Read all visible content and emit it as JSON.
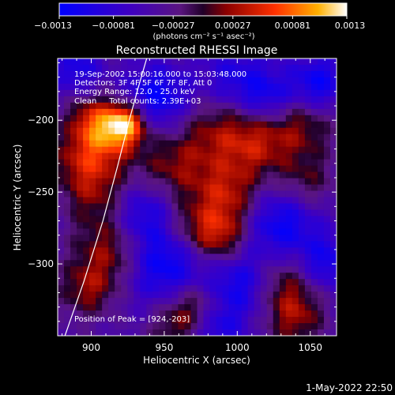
{
  "chart_data": {
    "type": "heatmap",
    "title": "Reconstructed RHESSI Image",
    "xlabel": "Heliocentric X (arcsec)",
    "ylabel": "Heliocentric Y (arcsec)",
    "xlim": [
      877,
      1068
    ],
    "ylim": [
      -350,
      -157
    ],
    "x_ticks": [
      900,
      950,
      1000,
      1050
    ],
    "x_tick_labels": [
      "900",
      "950",
      "1000",
      "1050"
    ],
    "y_ticks": [
      -200,
      -250,
      -300
    ],
    "y_tick_labels": [
      "−200",
      "−250",
      "−300"
    ],
    "colorbar": {
      "min": -0.0013,
      "max": 0.0013,
      "ticks": [
        -0.0013,
        -0.00081,
        -0.00027,
        0.00027,
        0.00081,
        0.0013
      ],
      "tick_labels": [
        "−0.0013",
        "−0.00081",
        "−0.00027",
        "0.00027",
        "0.00081",
        "0.0013"
      ],
      "unit_label": "(photons cm⁻² s⁻¹ asec⁻²)"
    },
    "annotations": [
      "19-Sep-2002 15:00:16.000 to 15:03:48.000",
      "Detectors: 3F 4F 5F 6F 7F 8F, Att 0",
      "Energy Range: 12.0 - 25.0 keV",
      "Clean     Total counts: 2.39E+03"
    ],
    "peak_label": "Position of Peak = [924,-203]",
    "peak": [
      924,
      -203
    ],
    "limb_points": [
      [
        882,
        -350
      ],
      [
        895,
        -312
      ],
      [
        908,
        -270
      ],
      [
        918,
        -232
      ],
      [
        926,
        -200
      ],
      [
        932,
        -178
      ],
      [
        938,
        -157
      ]
    ],
    "blobs": [
      [
        924,
        -202,
        0.00125,
        10
      ],
      [
        912,
        -210,
        0.00075,
        14
      ],
      [
        895,
        -228,
        0.0007,
        16
      ],
      [
        900,
        -198,
        0.0006,
        12
      ],
      [
        905,
        -252,
        0.0005,
        16
      ],
      [
        915,
        -290,
        0.00075,
        18
      ],
      [
        897,
        -318,
        0.0006,
        14
      ],
      [
        955,
        -233,
        0.0006,
        18
      ],
      [
        965,
        -275,
        0.0005,
        14
      ],
      [
        990,
        -205,
        0.0007,
        20
      ],
      [
        993,
        -252,
        0.00075,
        16
      ],
      [
        988,
        -282,
        0.00085,
        14
      ],
      [
        1015,
        -218,
        0.00055,
        16
      ],
      [
        1045,
        -203,
        0.0006,
        16
      ],
      [
        1047,
        -243,
        0.0005,
        14
      ],
      [
        1030,
        -315,
        0.00085,
        18
      ],
      [
        970,
        -330,
        0.0007,
        14
      ],
      [
        1040,
        -340,
        0.0005,
        14
      ],
      [
        955,
        -345,
        0.0004,
        12
      ],
      [
        1000,
        -175,
        -0.0007,
        18
      ],
      [
        945,
        -185,
        -0.00085,
        16
      ],
      [
        950,
        -300,
        -0.0009,
        20
      ],
      [
        1005,
        -315,
        -0.0009,
        18
      ],
      [
        1030,
        -273,
        -0.0008,
        18
      ],
      [
        1055,
        -175,
        -0.0008,
        14
      ],
      [
        935,
        -265,
        -0.0007,
        16
      ],
      [
        985,
        -345,
        -0.0006,
        12
      ],
      [
        1060,
        -300,
        -0.0007,
        14
      ],
      [
        890,
        -165,
        -0.0006,
        12
      ],
      [
        1022,
        -185,
        -0.0005,
        12
      ]
    ]
  },
  "footer": {
    "date_stamp": "1-May-2022 22:50"
  }
}
